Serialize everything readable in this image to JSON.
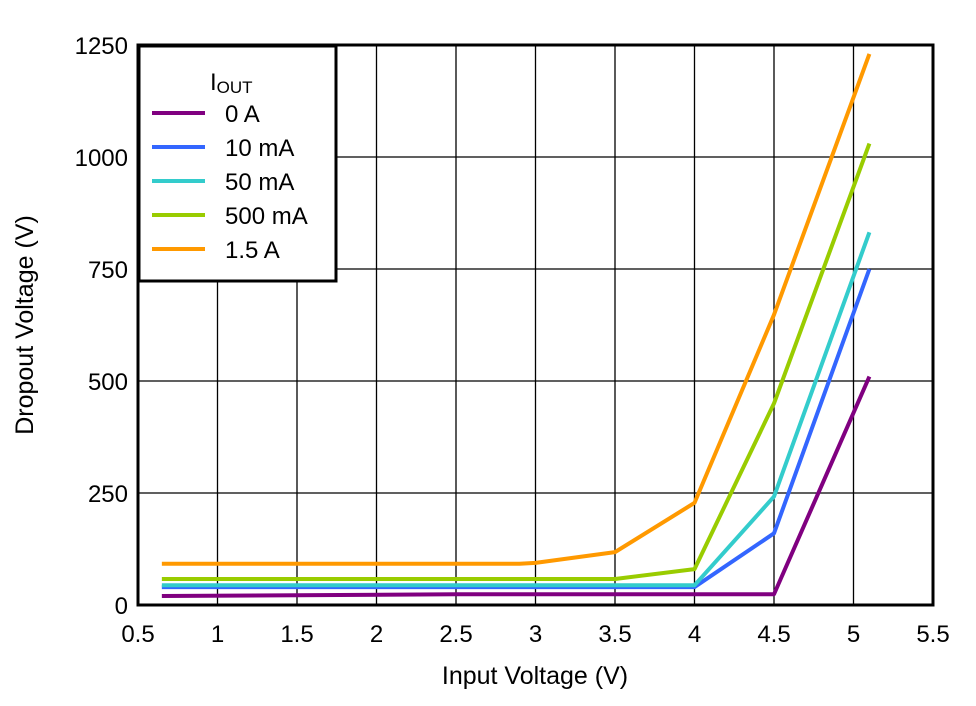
{
  "chart_data": {
    "type": "line",
    "title": "",
    "xlabel": "Input Voltage (V)",
    "ylabel": "Dropout Voltage (V)",
    "xlim": [
      0.5,
      5.5
    ],
    "ylim": [
      0,
      1250
    ],
    "xticks": [
      0.5,
      1,
      1.5,
      2,
      2.5,
      3,
      3.5,
      4,
      4.5,
      5,
      5.5
    ],
    "xtick_labels": [
      "0.5",
      "1",
      "1.5",
      "2",
      "2.5",
      "3",
      "3.5",
      "4",
      "4.5",
      "5",
      "5.5"
    ],
    "yticks": [
      0,
      250,
      500,
      750,
      1000,
      1250
    ],
    "ytick_labels": [
      "0",
      "250",
      "500",
      "750",
      "1000",
      "1250"
    ],
    "grid": true,
    "legend": {
      "title": "I",
      "title_sub": "OUT",
      "placement": "top-left"
    },
    "series": [
      {
        "name": "0 A",
        "color": "#800080",
        "x": [
          0.65,
          2.5,
          4.0,
          4.5,
          5.1
        ],
        "y": [
          20,
          24,
          24,
          24,
          510
        ]
      },
      {
        "name": "10 mA",
        "color": "#3366ff",
        "x": [
          0.65,
          3.5,
          4.0,
          4.5,
          5.1
        ],
        "y": [
          40,
          40,
          40,
          160,
          750
        ]
      },
      {
        "name": "50 mA",
        "color": "#33cccc",
        "x": [
          0.65,
          3.5,
          4.0,
          4.5,
          5.1
        ],
        "y": [
          44,
          44,
          44,
          242,
          832
        ]
      },
      {
        "name": "500 mA",
        "color": "#99cc00",
        "x": [
          0.65,
          3.5,
          4.0,
          4.5,
          5.1
        ],
        "y": [
          58,
          58,
          80,
          450,
          1030
        ]
      },
      {
        "name": "1.5 A",
        "color": "#ff9900",
        "x": [
          0.65,
          2.9,
          3.0,
          3.5,
          4.0,
          4.5,
          5.1
        ],
        "y": [
          92,
          92,
          94,
          118,
          228,
          648,
          1230
        ]
      }
    ]
  }
}
